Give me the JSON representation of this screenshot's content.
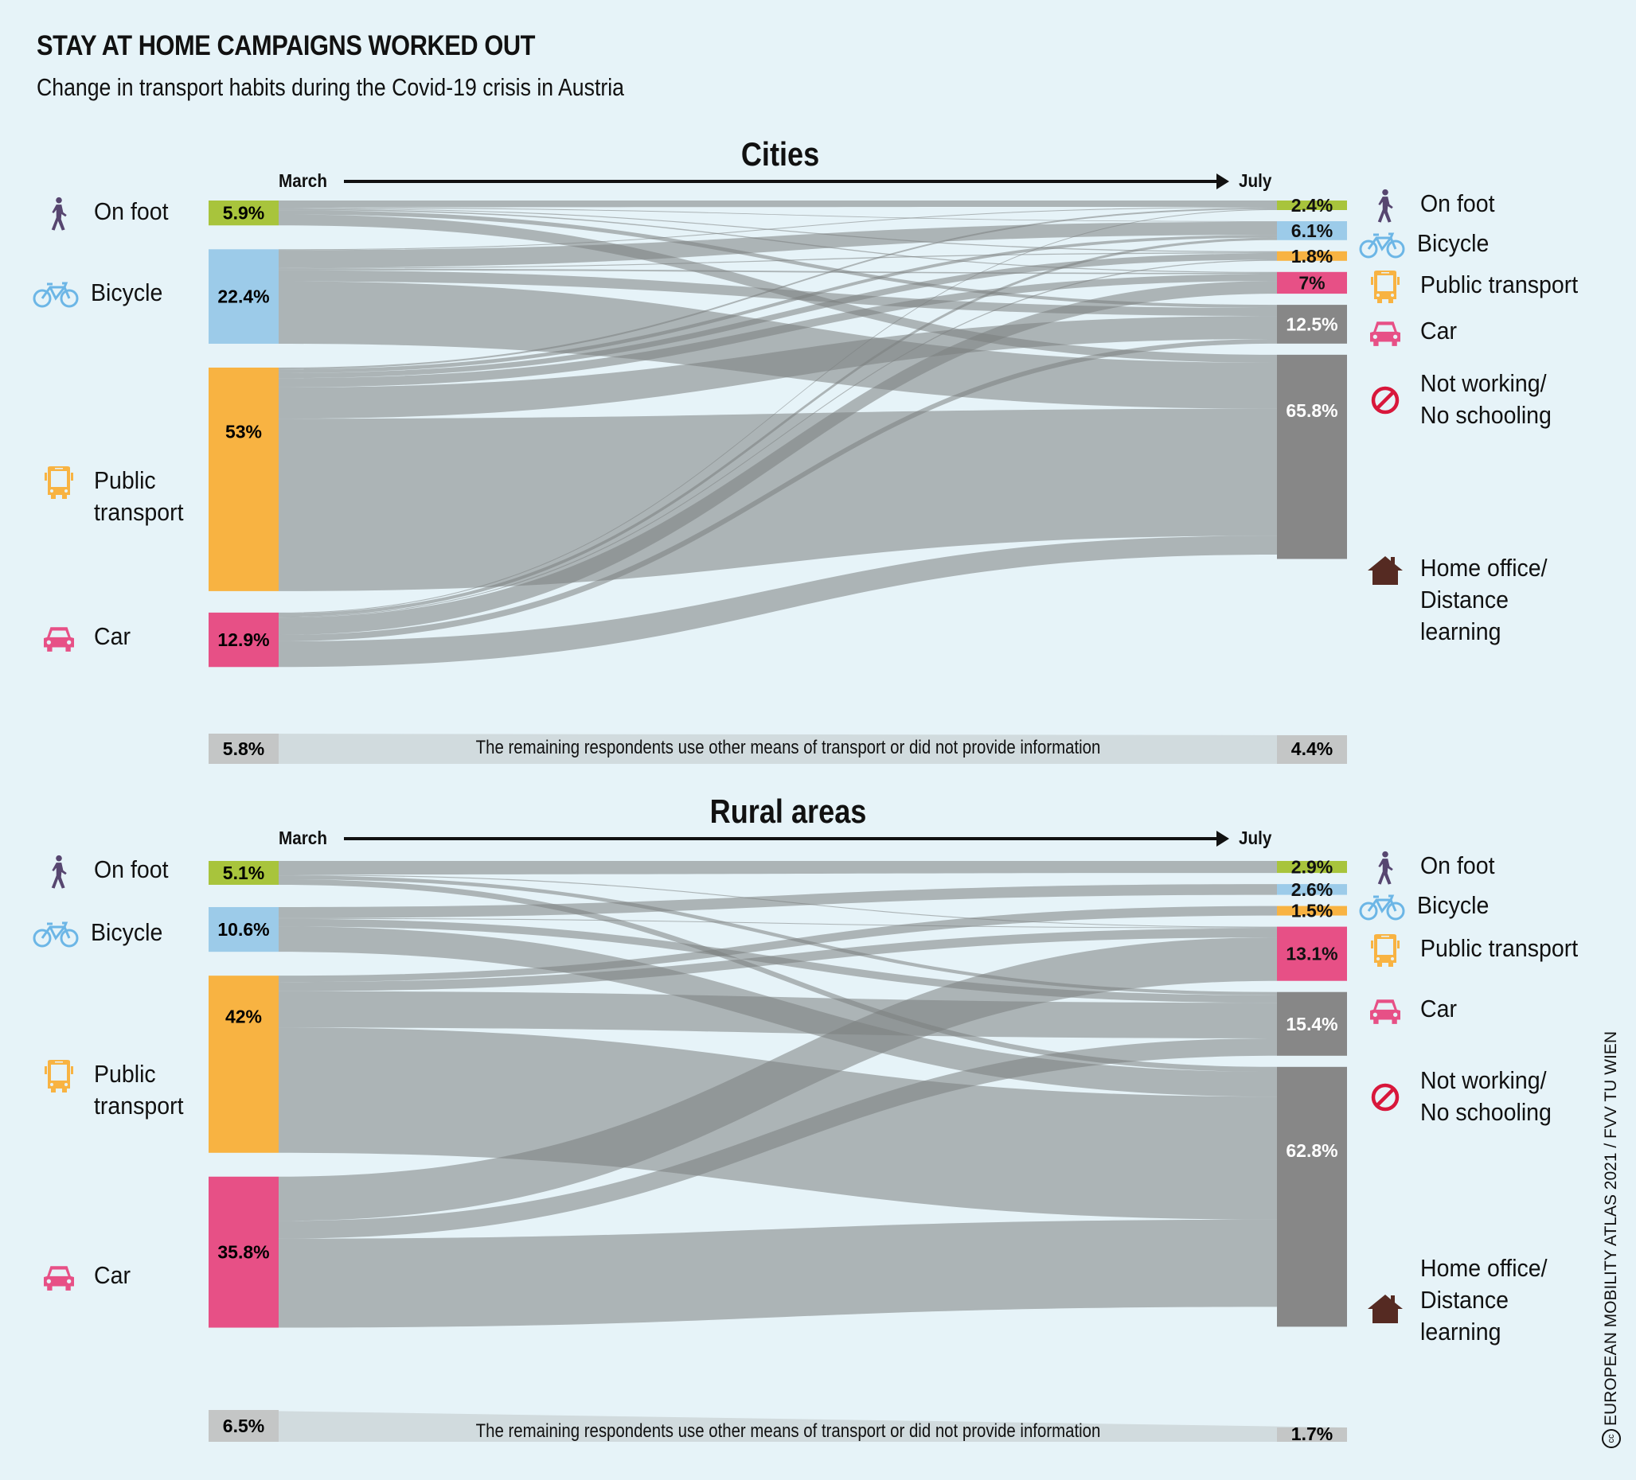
{
  "header": {
    "title": "STAY AT HOME CAMPAIGNS WORKED OUT",
    "subtitle": "Change in transport habits during the Covid-19 crisis in Austria"
  },
  "axis": {
    "from": "March",
    "to": "July"
  },
  "colors": {
    "background": "#e6f3f8",
    "on_foot": "#a8c43c",
    "bicycle": "#9ccbe9",
    "public_transport": "#f8b342",
    "car": "#e75086",
    "not_working": "#878787",
    "home_office": "#878787",
    "remaining": "#c4c6c6",
    "flow": "#7b807f",
    "walker_icon": "#574670",
    "house_icon": "#552a22",
    "no_icon": "#d8173b"
  },
  "legend": {
    "on_foot": "On foot",
    "bicycle": "Bicycle",
    "public_transport": "Public transport",
    "public_transport_wrapped": "Public\ntransport",
    "car": "Car",
    "not_working": "Not working/\nNo schooling",
    "home_office": "Home office/\nDistance\nlearning"
  },
  "remaining_note": "The remaining respondents use other means of transport or did not provide information",
  "credit": "EUROPEAN MOBILITY ATLAS 2021 / FVV TU WIEN",
  "chart_data": [
    {
      "type": "sankey",
      "title": "Cities",
      "unit": "%",
      "sources": [
        {
          "id": "on_foot",
          "label": "On foot",
          "value": 5.9,
          "text": "5.9%"
        },
        {
          "id": "bicycle",
          "label": "Bicycle",
          "value": 22.4,
          "text": "22.4%"
        },
        {
          "id": "public_transport",
          "label": "Public transport",
          "value": 53,
          "text": "53%"
        },
        {
          "id": "car",
          "label": "Car",
          "value": 12.9,
          "text": "12.9%"
        }
      ],
      "targets": [
        {
          "id": "on_foot",
          "label": "On foot",
          "value": 2.4,
          "text": "2.4%"
        },
        {
          "id": "bicycle",
          "label": "Bicycle",
          "value": 6.1,
          "text": "6.1%"
        },
        {
          "id": "public_transport",
          "label": "Public transport",
          "value": 1.8,
          "text": "1.8%"
        },
        {
          "id": "car",
          "label": "Car",
          "value": 7,
          "text": "7%"
        },
        {
          "id": "not_working",
          "label": "Not working/No schooling",
          "value": 12.5,
          "text": "12.5%"
        },
        {
          "id": "home_office",
          "label": "Home office/Distance learning",
          "value": 65.8,
          "text": "65.8%"
        }
      ],
      "remaining": {
        "march": 5.8,
        "march_text": "5.8%",
        "july": 4.4,
        "july_text": "4.4%"
      },
      "flows_estimated": [
        {
          "from": "on_foot",
          "to": "on_foot",
          "value": 1.6
        },
        {
          "from": "on_foot",
          "to": "bicycle",
          "value": 0.2
        },
        {
          "from": "on_foot",
          "to": "public_transport",
          "value": 0.2
        },
        {
          "from": "on_foot",
          "to": "car",
          "value": 0.3
        },
        {
          "from": "on_foot",
          "to": "not_working",
          "value": 1.0
        },
        {
          "from": "on_foot",
          "to": "home_office",
          "value": 2.6
        },
        {
          "from": "bicycle",
          "to": "on_foot",
          "value": 0.2
        },
        {
          "from": "bicycle",
          "to": "bicycle",
          "value": 4.2
        },
        {
          "from": "bicycle",
          "to": "public_transport",
          "value": 0.2
        },
        {
          "from": "bicycle",
          "to": "car",
          "value": 0.4
        },
        {
          "from": "bicycle",
          "to": "not_working",
          "value": 2.6
        },
        {
          "from": "bicycle",
          "to": "home_office",
          "value": 14.8
        },
        {
          "from": "public_transport",
          "to": "on_foot",
          "value": 0.4
        },
        {
          "from": "public_transport",
          "to": "bicycle",
          "value": 0.9
        },
        {
          "from": "public_transport",
          "to": "public_transport",
          "value": 1.2
        },
        {
          "from": "public_transport",
          "to": "car",
          "value": 2.2
        },
        {
          "from": "public_transport",
          "to": "not_working",
          "value": 7.4
        },
        {
          "from": "public_transport",
          "to": "home_office",
          "value": 40.9
        },
        {
          "from": "car",
          "to": "on_foot",
          "value": 0.2
        },
        {
          "from": "car",
          "to": "bicycle",
          "value": 0.8
        },
        {
          "from": "car",
          "to": "public_transport",
          "value": 0.2
        },
        {
          "from": "car",
          "to": "car",
          "value": 4.1
        },
        {
          "from": "car",
          "to": "not_working",
          "value": 1.5
        },
        {
          "from": "car",
          "to": "home_office",
          "value": 6.1
        }
      ]
    },
    {
      "type": "sankey",
      "title": "Rural areas",
      "unit": "%",
      "sources": [
        {
          "id": "on_foot",
          "label": "On foot",
          "value": 5.1,
          "text": "5.1%"
        },
        {
          "id": "bicycle",
          "label": "Bicycle",
          "value": 10.6,
          "text": "10.6%"
        },
        {
          "id": "public_transport",
          "label": "Public transport",
          "value": 42,
          "text": "42%"
        },
        {
          "id": "car",
          "label": "Car",
          "value": 35.8,
          "text": "35.8%"
        }
      ],
      "targets": [
        {
          "id": "on_foot",
          "label": "On foot",
          "value": 2.9,
          "text": "2.9%"
        },
        {
          "id": "bicycle",
          "label": "Bicycle",
          "value": 2.6,
          "text": "2.6%"
        },
        {
          "id": "public_transport",
          "label": "Public transport",
          "value": 1.5,
          "text": "1.5%"
        },
        {
          "id": "car",
          "label": "Car",
          "value": 13.1,
          "text": "13.1%"
        },
        {
          "id": "not_working",
          "label": "Not working/No schooling",
          "value": 15.4,
          "text": "15.4%"
        },
        {
          "id": "home_office",
          "label": "Home office/Distance learning",
          "value": 62.8,
          "text": "62.8%"
        }
      ],
      "remaining": {
        "march": 6.5,
        "march_text": "6.5%",
        "july": 1.7,
        "july_text": "1.7%"
      },
      "flows_estimated": [
        {
          "from": "on_foot",
          "to": "on_foot",
          "value": 2.9
        },
        {
          "from": "on_foot",
          "to": "car",
          "value": 0.2
        },
        {
          "from": "on_foot",
          "to": "not_working",
          "value": 0.8
        },
        {
          "from": "on_foot",
          "to": "home_office",
          "value": 1.2
        },
        {
          "from": "bicycle",
          "to": "bicycle",
          "value": 2.6
        },
        {
          "from": "bicycle",
          "to": "car",
          "value": 0.2
        },
        {
          "from": "bicycle",
          "to": "not_working",
          "value": 1.8
        },
        {
          "from": "bicycle",
          "to": "home_office",
          "value": 6.0
        },
        {
          "from": "public_transport",
          "to": "public_transport",
          "value": 1.5
        },
        {
          "from": "public_transport",
          "to": "car",
          "value": 2.2
        },
        {
          "from": "public_transport",
          "to": "not_working",
          "value": 8.6
        },
        {
          "from": "public_transport",
          "to": "home_office",
          "value": 29.7
        },
        {
          "from": "car",
          "to": "car",
          "value": 10.5
        },
        {
          "from": "car",
          "to": "not_working",
          "value": 4.2
        },
        {
          "from": "car",
          "to": "home_office",
          "value": 21.1
        }
      ]
    }
  ]
}
